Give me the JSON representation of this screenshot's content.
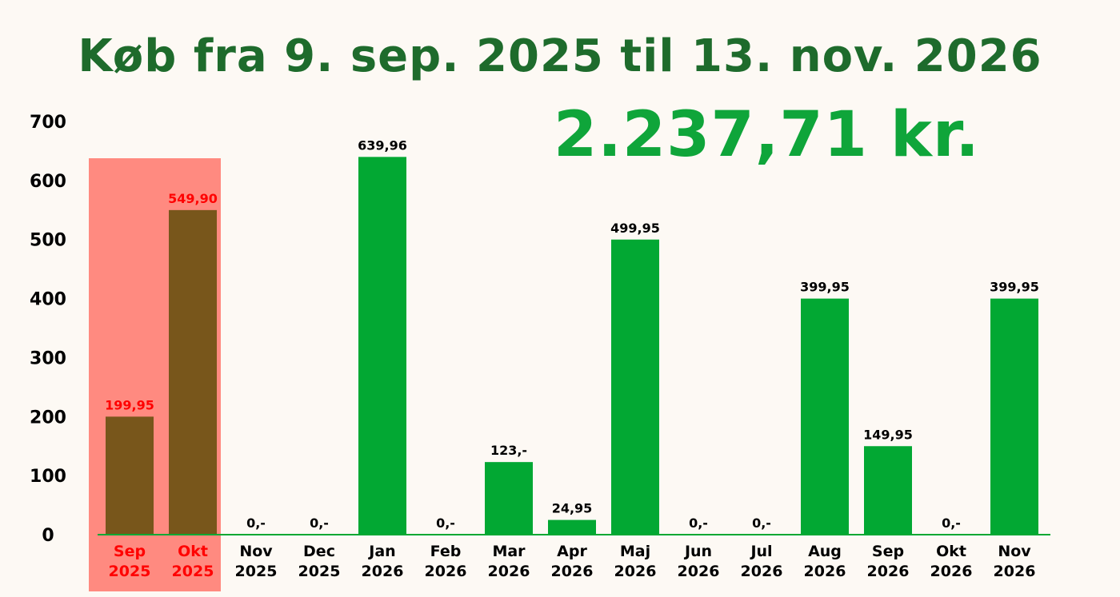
{
  "title": "Køb fra 9. sep. 2025 til 13. nov. 2026",
  "total": "2.237,71 kr.",
  "colors": {
    "bar": "#02a833",
    "highlight_bar": "#78561b",
    "highlight_band": "#ff8a80",
    "highlight_text": "#ff0000",
    "axis": "#02a833",
    "text": "#000000"
  },
  "chart_data": {
    "type": "bar",
    "categories": [
      "Sep 2025",
      "Okt 2025",
      "Nov 2025",
      "Dec 2025",
      "Jan 2026",
      "Feb 2026",
      "Mar 2026",
      "Apr 2026",
      "Maj 2026",
      "Jun 2026",
      "Jul 2026",
      "Aug 2026",
      "Sep 2026",
      "Okt 2026",
      "Nov 2026"
    ],
    "category_lines": [
      [
        "Sep",
        "2025"
      ],
      [
        "Okt",
        "2025"
      ],
      [
        "Nov",
        "2025"
      ],
      [
        "Dec",
        "2025"
      ],
      [
        "Jan",
        "2026"
      ],
      [
        "Feb",
        "2026"
      ],
      [
        "Mar",
        "2026"
      ],
      [
        "Apr",
        "2026"
      ],
      [
        "Maj",
        "2026"
      ],
      [
        "Jun",
        "2026"
      ],
      [
        "Jul",
        "2026"
      ],
      [
        "Aug",
        "2026"
      ],
      [
        "Sep",
        "2026"
      ],
      [
        "Okt",
        "2026"
      ],
      [
        "Nov",
        "2026"
      ]
    ],
    "values": [
      199.95,
      549.9,
      0,
      0,
      639.96,
      0,
      123,
      24.95,
      499.95,
      0,
      0,
      399.95,
      149.95,
      0,
      399.95
    ],
    "value_labels": [
      "199,95",
      "549,90",
      "0,-",
      "0,-",
      "639,96",
      "0,-",
      "123,-",
      "24,95",
      "499,95",
      "0,-",
      "0,-",
      "399,95",
      "149,95",
      "0,-",
      "399,95"
    ],
    "highlighted": [
      "Sep 2025",
      "Okt 2025"
    ],
    "ylim": [
      0,
      700
    ],
    "yticks": [
      0,
      100,
      200,
      300,
      400,
      500,
      600,
      700
    ],
    "grid": false,
    "legend": "none"
  }
}
